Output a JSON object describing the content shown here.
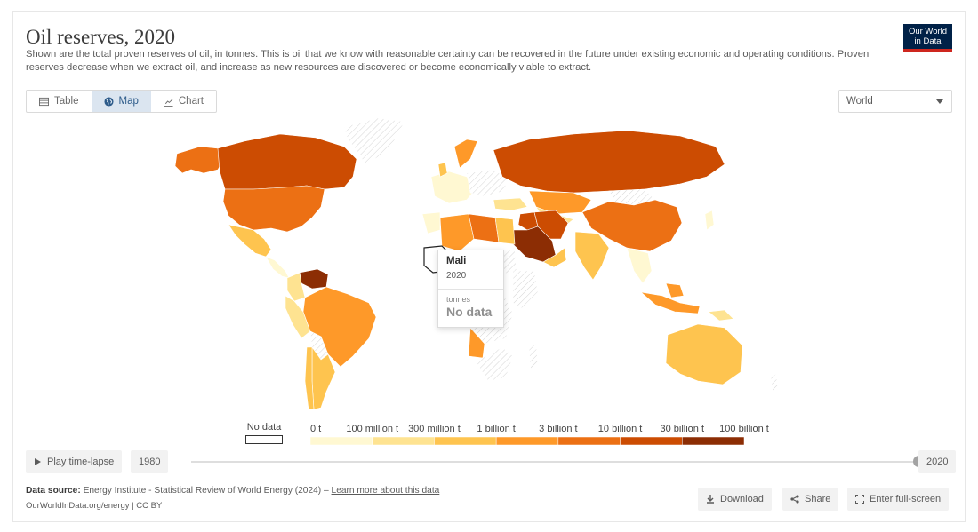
{
  "header": {
    "title": "Oil reserves, 2020",
    "subtitle": "Shown are the total proven reserves of oil, in tonnes. This is oil that we know with reasonable certainty can be recovered in the future under existing economic and operating conditions. Proven reserves decrease when we extract oil, and increase as new resources are discovered or become economically viable to extract.",
    "logo_line1": "Our World",
    "logo_line2": "in Data"
  },
  "tabs": [
    {
      "label": "Table",
      "icon": "table-icon",
      "active": false
    },
    {
      "label": "Map",
      "icon": "globe-icon",
      "active": true
    },
    {
      "label": "Chart",
      "icon": "line-chart-icon",
      "active": false
    }
  ],
  "region_select": {
    "value": "World"
  },
  "tooltip": {
    "country": "Mali",
    "year": "2020",
    "unit": "tonnes",
    "value": "No data"
  },
  "legend": {
    "no_data_label": "No data",
    "bins": [
      {
        "label": "0 t",
        "color": "#fff8d2"
      },
      {
        "label": "100 million t",
        "color": "#fee391"
      },
      {
        "label": "300 million t",
        "color": "#fec44f"
      },
      {
        "label": "1 billion t",
        "color": "#fe9929"
      },
      {
        "label": "3 billion t",
        "color": "#ec7014"
      },
      {
        "label": "10 billion t",
        "color": "#cc4c02"
      },
      {
        "label": "30 billion t",
        "color": "#8c2d04"
      },
      {
        "label": "100 billion t",
        "color": ""
      }
    ]
  },
  "timeline": {
    "play_label": "Play time-lapse",
    "start_year": "1980",
    "end_year": "2020",
    "position_fraction": 1.0
  },
  "footer": {
    "source_prefix": "Data source:",
    "source_text": "Energy Institute - Statistical Review of World Energy (2024) –",
    "learn_more": "Learn more about this data",
    "url_text": "OurWorldInData.org/energy | CC BY",
    "download_label": "Download",
    "share_label": "Share",
    "fullscreen_label": "Enter full-screen"
  },
  "colors": {
    "no_data": "#ffffff",
    "hatched": "#e3e3e3",
    "very_high": "#8c2d04",
    "high": "#cc4c02",
    "mid_high": "#ec7014",
    "mid": "#fe9929",
    "low": "#fec44f",
    "very_low": "#fee391",
    "lowest": "#fff8d2"
  }
}
